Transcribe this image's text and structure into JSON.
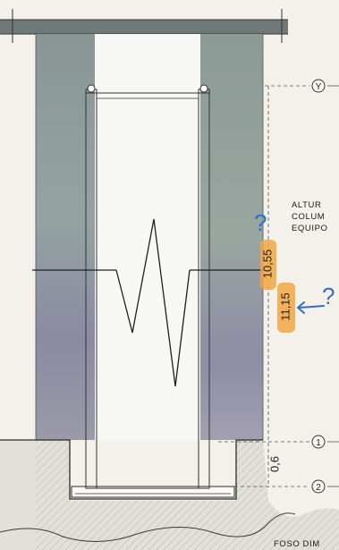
{
  "axes": {
    "y_label": "Y",
    "level_1": "1",
    "level_2": "2"
  },
  "dimensions": {
    "height_a": "10,55",
    "height_b": "11,15",
    "pit_depth": "0,6"
  },
  "note": {
    "line1": "ALTUR",
    "line2": "COLUM",
    "line3": "EQUIPO"
  },
  "bottom_note": "FOSO DIM",
  "annotations": {
    "question_1": "?",
    "question_2": "?"
  },
  "colors": {
    "wall": "#8d979a",
    "highlight": "#f1a742",
    "annotation": "#2f6fc9"
  }
}
